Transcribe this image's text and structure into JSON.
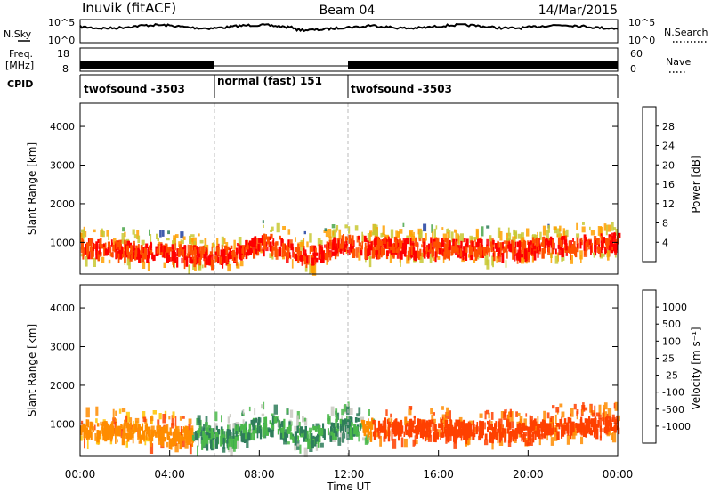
{
  "header": {
    "station": "Inuvik (fitACF)",
    "beam": "Beam 04",
    "date": "14/Mar/2015"
  },
  "strip_panels": {
    "nsky_label": "N.Sky",
    "nsky_ticks": [
      "10^5",
      "10^0"
    ],
    "nsearch_label": "N.Search",
    "nsearch_ticks": [
      "10^5",
      "10^0"
    ],
    "freq_label_line1": "Freq.",
    "freq_label_line2": "[MHz]",
    "freq_ticks": [
      "18",
      "8"
    ],
    "nave_label": "Nave",
    "nave_ticks": [
      "60",
      "0"
    ],
    "cpid_label": "CPID",
    "cpid_segments": [
      {
        "label": "twofsound -3503",
        "start_hour": 0,
        "end_hour": 6
      },
      {
        "label": "normal (fast) 151",
        "start_hour": 6,
        "end_hour": 12
      },
      {
        "label": "twofsound -3503",
        "start_hour": 12,
        "end_hour": 24
      }
    ]
  },
  "chart_data": [
    {
      "type": "heatmap",
      "title": "",
      "xlabel": "",
      "ylabel": "Slant Range [km]",
      "xlim": [
        0,
        24
      ],
      "ylim": [
        180,
        4600
      ],
      "yticks": [
        "1000",
        "2000",
        "3000",
        "4000"
      ],
      "colorbar_label": "Power [dB]",
      "colorbar_ticks": [
        "28",
        "24",
        "20",
        "16",
        "12",
        "8",
        "4"
      ],
      "colorbar_colors": [
        "#0000ff",
        "#2040a0",
        "#2e7d5b",
        "#4aa64a",
        "#c8c832",
        "#ffa000",
        "#ff5000",
        "#ff0000"
      ]
    },
    {
      "type": "heatmap",
      "title": "",
      "xlabel": "Time UT",
      "ylabel": "Slant Range [km]",
      "xlim": [
        0,
        24
      ],
      "ylim": [
        180,
        4600
      ],
      "xticks": [
        "00:00",
        "04:00",
        "08:00",
        "12:00",
        "16:00",
        "20:00",
        "00:00"
      ],
      "yticks": [
        "1000",
        "2000",
        "3000",
        "4000"
      ],
      "colorbar_label": "Velocity [m s⁻¹]",
      "colorbar_ticks": [
        "1000",
        "500",
        "100",
        "25",
        "-25",
        "-100",
        "-500",
        "-1000"
      ],
      "colorbar_colors": [
        "#2040b0",
        "#2e6e8a",
        "#2e7d5b",
        "#4ab84a",
        "#c8c8c0",
        "#ffc400",
        "#ff8c00",
        "#ff4000",
        "#e00000"
      ]
    }
  ]
}
